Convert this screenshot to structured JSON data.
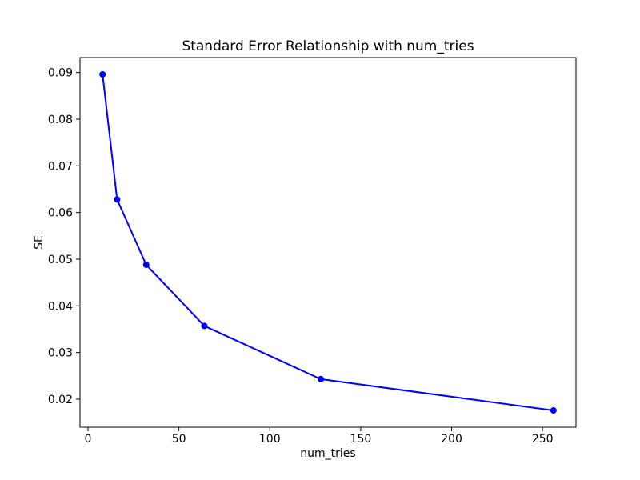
{
  "figure": {
    "background": "#ffffff",
    "text_color": "#000000"
  },
  "chart_data": {
    "type": "line",
    "title": "Standard Error Relationship with num_tries",
    "xlabel": "num_tries",
    "ylabel": "SE",
    "x": [
      8,
      16,
      32,
      64,
      128,
      256
    ],
    "y": [
      0.0896,
      0.0628,
      0.0488,
      0.0357,
      0.0243,
      0.0176
    ],
    "line_color": "#0000ff",
    "marker": "circle",
    "marker_radius": 4,
    "line_width": 2,
    "x_ticks": [
      0,
      50,
      100,
      150,
      200,
      250
    ],
    "y_ticks": [
      0.02,
      0.03,
      0.04,
      0.05,
      0.06,
      0.07,
      0.08,
      0.09
    ],
    "y_tick_decimals": 2,
    "xlim": [
      -4.4,
      268.4
    ],
    "ylim": [
      0.014,
      0.0932
    ],
    "grid": false,
    "legend_position": "none"
  }
}
